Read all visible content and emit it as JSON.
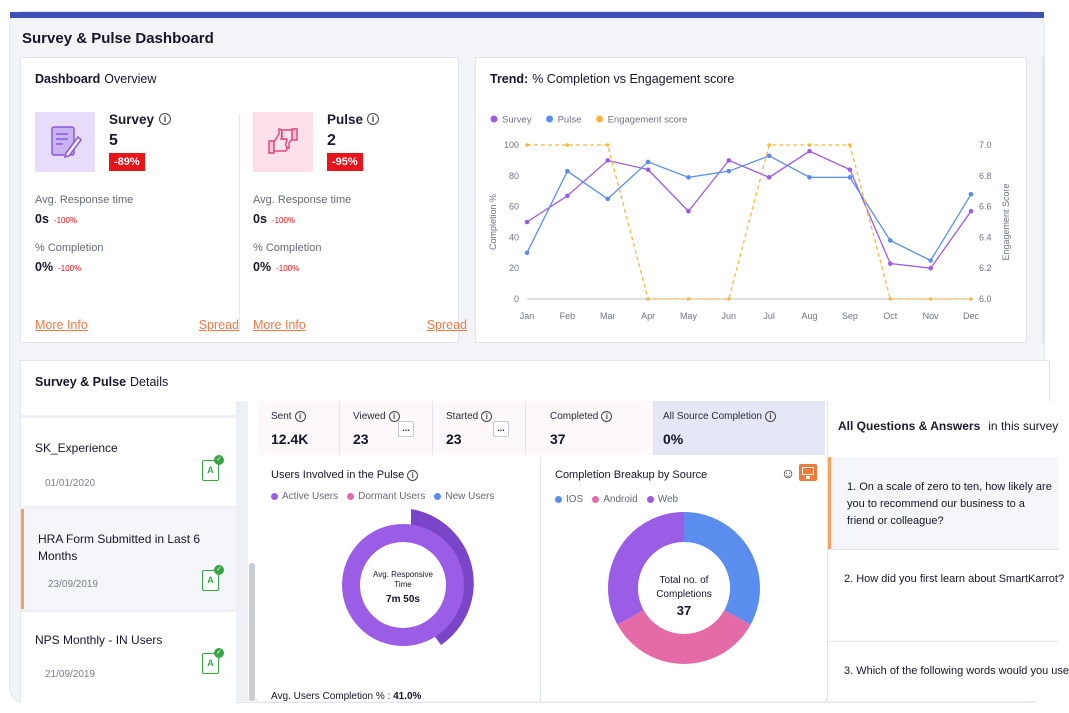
{
  "page_title": "Survey & Pulse Dashboard",
  "overview": {
    "heading_bold": "Dashboard",
    "heading_rest": "Overview",
    "survey": {
      "name": "Survey",
      "count": "5",
      "badge": "-89%",
      "avg_label": "Avg. Response time",
      "avg_value": "0s",
      "avg_delta": "-100%",
      "comp_label": "% Completion",
      "comp_value": "0%",
      "comp_delta": "-100%",
      "more_info": "More Info",
      "spread": "Spread"
    },
    "pulse": {
      "name": "Pulse",
      "count": "2",
      "badge": "-95%",
      "avg_label": "Avg. Response time",
      "avg_value": "0s",
      "avg_delta": "-100%",
      "comp_label": "% Completion",
      "comp_value": "0%",
      "comp_delta": "-100%",
      "more_info": "More Info",
      "spread": "Spread"
    }
  },
  "trend": {
    "heading_bold": "Trend:",
    "heading_rest": "% Completion vs Engagement score"
  },
  "chart_data": {
    "type": "line",
    "x": [
      "Jan",
      "Feb",
      "Mar",
      "Apr",
      "May",
      "Jun",
      "Jul",
      "Aug",
      "Sep",
      "Oct",
      "Nov",
      "Dec"
    ],
    "ylabel": "Completion %",
    "y2label": "Engagement Score",
    "ylim": [
      0,
      100
    ],
    "y_ticks": [
      0,
      20,
      40,
      60,
      80,
      100
    ],
    "y2lim": [
      6.0,
      7.0
    ],
    "y2_ticks": [
      "6.0",
      "6.2",
      "6.4",
      "6.6",
      "6.8",
      "7.0"
    ],
    "legend_position": "top-left",
    "series": [
      {
        "name": "Survey",
        "color": "#9b5de5",
        "axis": "left",
        "dash": false,
        "values": [
          50,
          67,
          90,
          84,
          57,
          90,
          79,
          96,
          84,
          23,
          20,
          57
        ]
      },
      {
        "name": "Pulse",
        "color": "#5b8def",
        "axis": "left",
        "dash": false,
        "values": [
          30,
          83,
          65,
          89,
          79,
          83,
          93,
          79,
          79,
          38,
          25,
          68
        ]
      },
      {
        "name": "Engagement score",
        "color": "#f5b843",
        "axis": "right",
        "dash": true,
        "values": [
          7.0,
          7.0,
          7.0,
          6.0,
          6.0,
          6.0,
          7.0,
          7.0,
          7.0,
          6.0,
          6.0,
          6.0
        ]
      }
    ]
  },
  "details": {
    "heading_bold": "Survey & Pulse",
    "heading_rest": "Details",
    "list": [
      {
        "name": "SK_Experience",
        "date": "01/01/2020"
      },
      {
        "name": "HRA Form Submitted in Last 6 Months",
        "date": "23/09/2019"
      },
      {
        "name": "NPS Monthly - IN Users",
        "date": "21/09/2019"
      }
    ],
    "doc_letter": "A",
    "stats": [
      {
        "label": "Sent",
        "value": "12.4K"
      },
      {
        "label": "Viewed",
        "value": "23"
      },
      {
        "label": "Started",
        "value": "23"
      },
      {
        "label": "Completed",
        "value": "37"
      },
      {
        "label": "All Source Completion",
        "value": "0%"
      }
    ],
    "more_glyph": "...",
    "users": {
      "title": "Users Involved in the Pulse",
      "legend": [
        {
          "name": "Active Users",
          "color": "#9b5de5"
        },
        {
          "name": "Dormant Users",
          "color": "#e46aa8"
        },
        {
          "name": "New Users",
          "color": "#5b8def"
        }
      ],
      "center_label": "Avg. Responsive Time",
      "center_value": "7m 50s",
      "footer": "Avg. Users Completion % :",
      "footer_value": "41.0%"
    },
    "source": {
      "title": "Completion Breakup by Source",
      "legend": [
        {
          "name": "IOS",
          "color": "#5b8def"
        },
        {
          "name": "Android",
          "color": "#e46aa8"
        },
        {
          "name": "Web",
          "color": "#9b5de5"
        }
      ],
      "center_label": "Total no. of Completions",
      "center_value": "37",
      "slices": [
        {
          "name": "IOS",
          "value": 33,
          "color": "#5b8def"
        },
        {
          "name": "Android",
          "value": 34,
          "color": "#e46aa8"
        },
        {
          "name": "Web",
          "value": 33,
          "color": "#9b5de5"
        }
      ]
    },
    "qa": {
      "heading_bold": "All Questions & Answers",
      "heading_rest": "in this survey",
      "questions": [
        "1. On a scale of zero to ten, how likely are you to recommend our business to a friend or colleague?",
        "2. How did you first learn about SmartKarrot?",
        "3. Which of the following words would you use"
      ]
    }
  }
}
